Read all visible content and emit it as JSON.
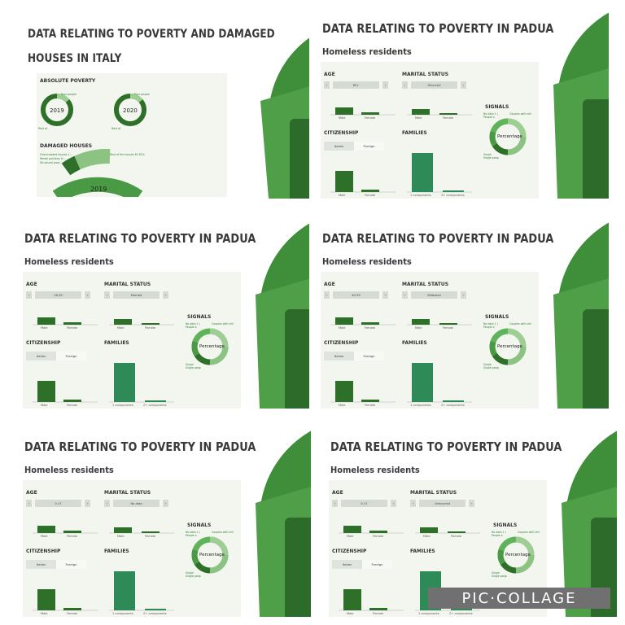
{
  "collage": {
    "tile1": {
      "title_line1": "DATA RELATING TO POVERTY AND DAMAGED",
      "title_line2": "HOUSES IN ITALY",
      "absolute_poverty": "ABSOLUTE POVERTY",
      "year_a": "2019",
      "year_b": "2020",
      "poor_people": "Poor people",
      "rest_of": "Rest of",
      "damaged_houses": "DAMAGED HOUSES",
      "dh_labels": [
        "Overcrowded houses 1...",
        "Rental pollution H...",
        "Structural prob..."
      ],
      "rest_of_houses": "Rest of the houses 81 81%",
      "year_c": "2019"
    },
    "padua_title": "DATA RELATING TO POVERTY IN PADUA",
    "homeless": "Homeless residents",
    "age": "AGE",
    "marital": "MARITAL STATUS",
    "signals": "SIGNALS",
    "citizenship": "CITIZENSHIP",
    "families": "FAMILIES",
    "italian": "Italian",
    "foreign": "Foreign",
    "male": "Male",
    "female": "Female",
    "one_comp": "1 components",
    "two_comp": "2+ components",
    "percentage": "Percentage",
    "no_data": "No data 1 (",
    "people_a": "People a",
    "couples": "Couples with chil",
    "single": "Single",
    "single_peop": "Single peop",
    "arrow_left": "‹",
    "arrow_right": "›",
    "tiles": [
      {
        "age": "65+",
        "marital": "Divorced"
      },
      {
        "age": "18-39",
        "marital": "Married"
      },
      {
        "age": "40-59",
        "marital": "Widowed"
      },
      {
        "age": "0-17",
        "marital": "No data"
      },
      {
        "age": "0-17",
        "marital": "Unmarried"
      }
    ],
    "watermark": "PIC·COLLAGE"
  },
  "colors": {
    "dark_green": "#2e6f2a",
    "mid_green": "#4a9a45",
    "light_green": "#8cc282",
    "panel": "#f3f6ef"
  }
}
